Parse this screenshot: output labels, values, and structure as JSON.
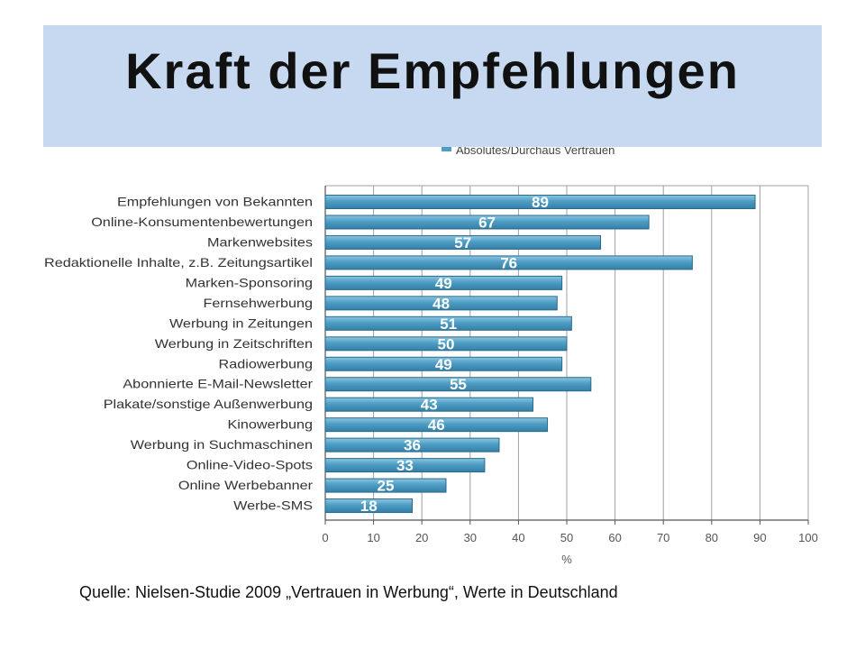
{
  "slide": {
    "title": "Kraft der Empfehlungen",
    "source": "Quelle: Nielsen-Studie 2009 „Vertrauen in Werbung“, Werte in Deutschland"
  },
  "colors": {
    "banner": "#c6d9f0",
    "title_text": "#111111",
    "bar_light": "#8cc6e0",
    "bar_mid": "#4d9dc5",
    "bar_dark": "#357fa6",
    "bar_border": "#2a6a8b",
    "value_label": "#ffffff",
    "grid": "#a0a0a0",
    "axis": "#555555",
    "text": "#333333"
  },
  "chart_data": {
    "type": "bar",
    "orientation": "horizontal",
    "categories": [
      "Empfehlungen von Bekannten",
      "Online-Konsumentenbewertungen",
      "Markenwebsites",
      "Redaktionelle Inhalte, z.B. Zeitungsartikel",
      "Marken-Sponsoring",
      "Fernsehwerbung",
      "Werbung in Zeitungen",
      "Werbung in Zeitschriften",
      "Radiowerbung",
      "Abonnierte E-Mail-Newsletter",
      "Plakate/sonstige Außenwerbung",
      "Kinowerbung",
      "Werbung in Suchmaschinen",
      "Online-Video-Spots",
      "Online Werbebanner",
      "Werbe-SMS"
    ],
    "series": [
      {
        "name": "Absolutes/Durchaus Vertrauen",
        "values": [
          89,
          67,
          57,
          76,
          49,
          48,
          51,
          50,
          49,
          55,
          43,
          46,
          36,
          33,
          25,
          18
        ]
      }
    ],
    "data_labels": true,
    "title": "",
    "xlabel": "%",
    "ylabel": "",
    "xlim": [
      0,
      100
    ],
    "xticks": [
      0,
      10,
      20,
      30,
      40,
      50,
      60,
      70,
      80,
      90,
      100
    ],
    "grid": true,
    "legend": "top"
  }
}
